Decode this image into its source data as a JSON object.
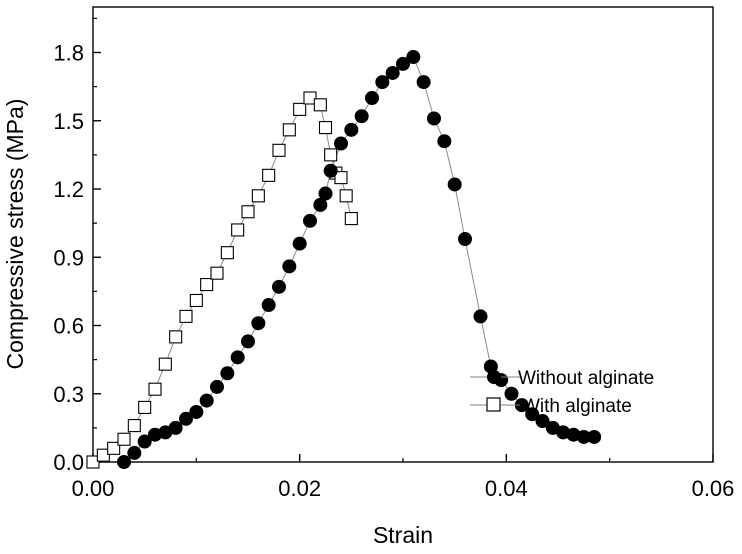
{
  "chart_data": {
    "type": "scatter",
    "title": "",
    "xlabel": "Strain",
    "ylabel": "Compressive stress (MPa)",
    "xlim": [
      0,
      0.06
    ],
    "ylim": [
      0,
      2.0
    ],
    "x_ticks": [
      "0.00",
      "0.02",
      "0.04",
      "0.06"
    ],
    "y_ticks": [
      "0.0",
      "0.3",
      "0.6",
      "0.9",
      "1.2",
      "1.5",
      "1.8"
    ],
    "grid": false,
    "legend_position": "lower-right",
    "series": [
      {
        "name": "Without alginate",
        "marker": "filled-circle",
        "color": "#000000",
        "connected": true,
        "points": [
          [
            0.003,
            0.0
          ],
          [
            0.004,
            0.04
          ],
          [
            0.005,
            0.09
          ],
          [
            0.006,
            0.12
          ],
          [
            0.007,
            0.13
          ],
          [
            0.008,
            0.15
          ],
          [
            0.009,
            0.19
          ],
          [
            0.01,
            0.22
          ],
          [
            0.011,
            0.27
          ],
          [
            0.012,
            0.33
          ],
          [
            0.013,
            0.39
          ],
          [
            0.014,
            0.46
          ],
          [
            0.015,
            0.53
          ],
          [
            0.016,
            0.61
          ],
          [
            0.017,
            0.69
          ],
          [
            0.018,
            0.77
          ],
          [
            0.019,
            0.86
          ],
          [
            0.02,
            0.96
          ],
          [
            0.021,
            1.06
          ],
          [
            0.022,
            1.13
          ],
          [
            0.0225,
            1.18
          ],
          [
            0.023,
            1.28
          ],
          [
            0.024,
            1.4
          ],
          [
            0.025,
            1.46
          ],
          [
            0.026,
            1.52
          ],
          [
            0.027,
            1.6
          ],
          [
            0.028,
            1.67
          ],
          [
            0.029,
            1.71
          ],
          [
            0.03,
            1.75
          ],
          [
            0.031,
            1.78
          ],
          [
            0.032,
            1.67
          ],
          [
            0.033,
            1.51
          ],
          [
            0.034,
            1.41
          ],
          [
            0.035,
            1.22
          ],
          [
            0.036,
            0.98
          ],
          [
            0.0375,
            0.64
          ],
          [
            0.0385,
            0.42
          ],
          [
            0.0395,
            0.36
          ],
          [
            0.0405,
            0.3
          ],
          [
            0.0415,
            0.25
          ],
          [
            0.0425,
            0.21
          ],
          [
            0.0435,
            0.18
          ],
          [
            0.0445,
            0.15
          ],
          [
            0.0455,
            0.13
          ],
          [
            0.0465,
            0.12
          ],
          [
            0.0475,
            0.11
          ],
          [
            0.0485,
            0.11
          ]
        ]
      },
      {
        "name": "With alginate",
        "marker": "open-square",
        "color": "#000000",
        "connected": true,
        "points": [
          [
            0.0,
            0.0
          ],
          [
            0.001,
            0.03
          ],
          [
            0.002,
            0.06
          ],
          [
            0.003,
            0.1
          ],
          [
            0.004,
            0.16
          ],
          [
            0.005,
            0.24
          ],
          [
            0.006,
            0.32
          ],
          [
            0.007,
            0.43
          ],
          [
            0.008,
            0.55
          ],
          [
            0.009,
            0.64
          ],
          [
            0.01,
            0.71
          ],
          [
            0.011,
            0.78
          ],
          [
            0.012,
            0.83
          ],
          [
            0.013,
            0.92
          ],
          [
            0.014,
            1.02
          ],
          [
            0.015,
            1.1
          ],
          [
            0.016,
            1.17
          ],
          [
            0.017,
            1.26
          ],
          [
            0.018,
            1.37
          ],
          [
            0.019,
            1.46
          ],
          [
            0.02,
            1.55
          ],
          [
            0.021,
            1.6
          ],
          [
            0.022,
            1.57
          ],
          [
            0.0225,
            1.47
          ],
          [
            0.023,
            1.35
          ],
          [
            0.0235,
            1.27
          ],
          [
            0.024,
            1.25
          ],
          [
            0.0245,
            1.17
          ],
          [
            0.025,
            1.07
          ]
        ]
      }
    ]
  }
}
